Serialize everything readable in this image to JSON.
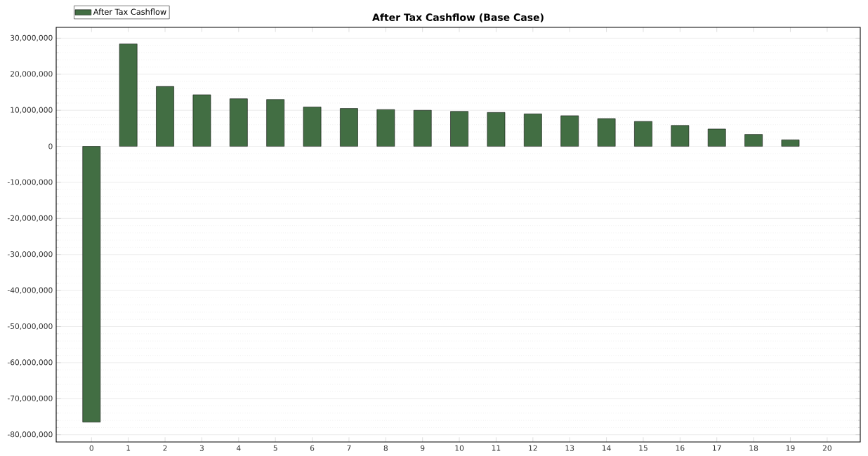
{
  "chart_data": {
    "type": "bar",
    "title": "After Tax Cashflow (Base Case)",
    "categories": [
      "0",
      "1",
      "2",
      "3",
      "4",
      "5",
      "6",
      "7",
      "8",
      "9",
      "10",
      "11",
      "12",
      "13",
      "14",
      "15",
      "16",
      "17",
      "18",
      "19",
      "20"
    ],
    "series": [
      {
        "name": "After Tax Cashflow",
        "color": "#426e43",
        "values": [
          -76500000,
          28400000,
          16600000,
          14300000,
          13200000,
          13000000,
          10900000,
          10500000,
          10200000,
          10000000,
          9700000,
          9400000,
          9000000,
          8500000,
          7700000,
          6900000,
          5800000,
          4800000,
          3300000,
          1800000,
          null
        ]
      }
    ],
    "ylim": [
      -82000000,
      33000000
    ],
    "yticks": [
      {
        "value": -80000000,
        "label": "-80,000,000"
      },
      {
        "value": -70000000,
        "label": "-70,000,000"
      },
      {
        "value": -60000000,
        "label": "-60,000,000"
      },
      {
        "value": -50000000,
        "label": "-50,000,000"
      },
      {
        "value": -40000000,
        "label": "-40,000,000"
      },
      {
        "value": -30000000,
        "label": "-30,000,000"
      },
      {
        "value": -20000000,
        "label": "-20,000,000"
      },
      {
        "value": -10000000,
        "label": "-10,000,000"
      },
      {
        "value": 0,
        "label": "0"
      },
      {
        "value": 10000000,
        "label": "10,000,000"
      },
      {
        "value": 20000000,
        "label": "20,000,000"
      },
      {
        "value": 30000000,
        "label": "30,000,000"
      }
    ],
    "grid": "y",
    "legend": "top left"
  }
}
